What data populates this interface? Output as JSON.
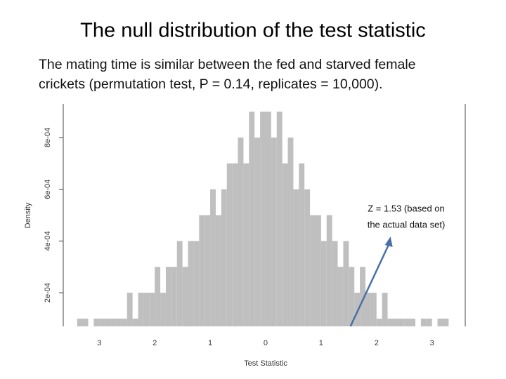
{
  "chart_data": {
    "type": "histogram",
    "title": "The null distribution of the test statistic",
    "subtitle": [
      "The mating time is similar between the fed and starved female",
      "crickets (permutation test, P = 0.14, replicates = 10,000)."
    ],
    "xlabel": "Test Statistic",
    "ylabel": "Density",
    "color": "#bfbfbf",
    "bins": [
      -3.4,
      -3.3,
      -3.2,
      -3.1,
      -3.0,
      -2.9,
      -2.8,
      -2.7,
      -2.6,
      -2.5,
      -2.4,
      -2.3,
      -2.2,
      -2.1,
      -2.0,
      -1.9,
      -1.8,
      -1.7,
      -1.6,
      -1.5,
      -1.4,
      -1.3,
      -1.2,
      -1.1,
      -1.0,
      -0.9,
      -0.8,
      -0.7,
      -0.6,
      -0.5,
      -0.4,
      -0.3,
      -0.2,
      -0.1,
      0.0,
      0.1,
      0.2,
      0.3,
      0.4,
      0.5,
      0.6,
      0.7,
      0.8,
      0.9,
      1.0,
      1.1,
      1.2,
      1.3,
      1.4,
      1.5,
      1.6,
      1.7,
      1.8,
      1.9,
      2.0,
      2.1,
      2.2,
      2.3,
      2.4,
      2.5,
      2.6,
      2.7,
      2.8,
      2.9,
      3.0,
      3.1,
      3.2,
      3.3,
      3.4
    ],
    "values": [
      0.0001,
      0.0001,
      0,
      0.0001,
      0.0001,
      0.0001,
      0.0001,
      0.0001,
      0.0001,
      0.0002,
      0.0001,
      0.0002,
      0.0002,
      0.0002,
      0.0003,
      0.0002,
      0.0003,
      0.0003,
      0.0004,
      0.0003,
      0.0004,
      0.0004,
      0.0005,
      0.0005,
      0.0006,
      0.0005,
      0.0006,
      0.0007,
      0.0007,
      0.0008,
      0.0007,
      0.0009,
      0.0008,
      0.0009,
      0.0009,
      0.0008,
      0.0009,
      0.0007,
      0.0008,
      0.0006,
      0.0007,
      0.0006,
      0.0005,
      0.0005,
      0.0004,
      0.0005,
      0.0004,
      0.0003,
      0.0004,
      0.0003,
      0.0002,
      0.0003,
      0.0002,
      0.0002,
      0.0001,
      0.0002,
      0.0001,
      0.0001,
      0.0001,
      0.0001,
      0.0001,
      0,
      0.0001,
      0.0001,
      0,
      0.0001,
      0.0001,
      0
    ],
    "xlim": [
      -3.65,
      3.6
    ],
    "ylim": [
      7e-05,
      0.00093
    ],
    "xticks": [
      {
        "value": -3,
        "label": "3"
      },
      {
        "value": -2,
        "label": "2"
      },
      {
        "value": -1,
        "label": "1"
      },
      0,
      1,
      2,
      3
    ],
    "yticks": [
      {
        "value": 0.0002,
        "label": "2e-04"
      },
      {
        "value": 0.0004,
        "label": "4e-04"
      },
      {
        "value": 0.0006,
        "label": "6e-04"
      },
      {
        "value": 0.0008,
        "label": "8e-04"
      }
    ],
    "annotation": {
      "lines": [
        "Z = 1.53 (based on",
        "the actual data set)"
      ],
      "x": 1.53,
      "color": "#4a6fa5"
    }
  }
}
